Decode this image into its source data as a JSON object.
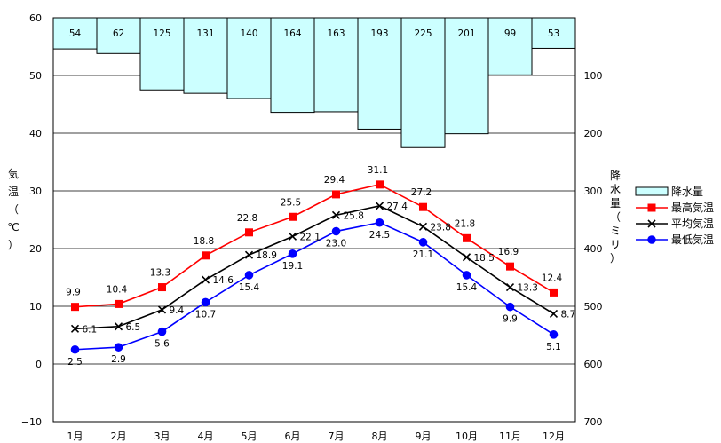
{
  "chart_data": {
    "type": "bar+line",
    "categories": [
      "1月",
      "2月",
      "3月",
      "4月",
      "5月",
      "6月",
      "7月",
      "8月",
      "9月",
      "10月",
      "11月",
      "12月"
    ],
    "y_left": {
      "label": "気温（℃）",
      "lim": [
        -10,
        60
      ],
      "ticks": [
        "−10",
        "0",
        "10",
        "20",
        "30",
        "40",
        "50",
        "60"
      ]
    },
    "y_right": {
      "label": "降水量（ミリ）",
      "lim": [
        0,
        700
      ],
      "inverted": true,
      "ticks": [
        "100",
        "200",
        "300",
        "400",
        "500",
        "600",
        "700"
      ]
    },
    "precipitation": {
      "name": "降水量",
      "color": "#ccffff",
      "values": [
        54,
        62,
        125,
        131,
        140,
        164,
        163,
        193,
        225,
        201,
        99,
        53
      ]
    },
    "series": [
      {
        "name": "最高気温",
        "color": "#ff0000",
        "marker": "square",
        "values": [
          9.9,
          10.4,
          13.3,
          18.8,
          22.8,
          25.5,
          29.4,
          31.1,
          27.2,
          21.8,
          16.9,
          12.4
        ]
      },
      {
        "name": "平均気温",
        "color": "#000000",
        "marker": "x",
        "values": [
          6.1,
          6.5,
          9.4,
          14.6,
          18.9,
          22.1,
          25.8,
          27.4,
          23.8,
          18.5,
          13.3,
          8.7
        ]
      },
      {
        "name": "最低気温",
        "color": "#0000ff",
        "marker": "circle",
        "values": [
          2.5,
          2.9,
          5.6,
          10.7,
          15.4,
          19.1,
          23.0,
          24.5,
          21.1,
          15.4,
          9.9,
          5.1
        ]
      }
    ],
    "legend": {
      "placement": "right",
      "entries": [
        "降水量",
        "最高気温",
        "平均気温",
        "最低気温"
      ]
    },
    "grid": true
  }
}
